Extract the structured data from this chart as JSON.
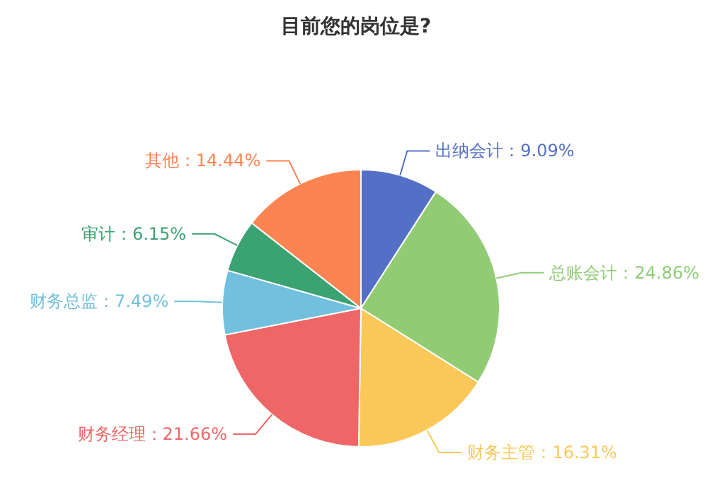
{
  "chart_data": {
    "type": "pie",
    "title": "目前您的岗位是?",
    "categories": [
      "出纳会计",
      "总账会计",
      "财务主管",
      "财务经理",
      "财务总监",
      "审计",
      "其他"
    ],
    "values": [
      9.09,
      24.86,
      16.31,
      21.66,
      7.49,
      6.15,
      14.44
    ],
    "colors": [
      "#5470c6",
      "#91cc75",
      "#fac858",
      "#ee6666",
      "#73c0de",
      "#3ba272",
      "#fc8452"
    ],
    "value_labels": [
      "：9.09%",
      "：24.86%",
      "：16.31%",
      "：21.66%",
      "：7.49%",
      "：6.15%",
      "：14.44%"
    ],
    "legend": false
  }
}
